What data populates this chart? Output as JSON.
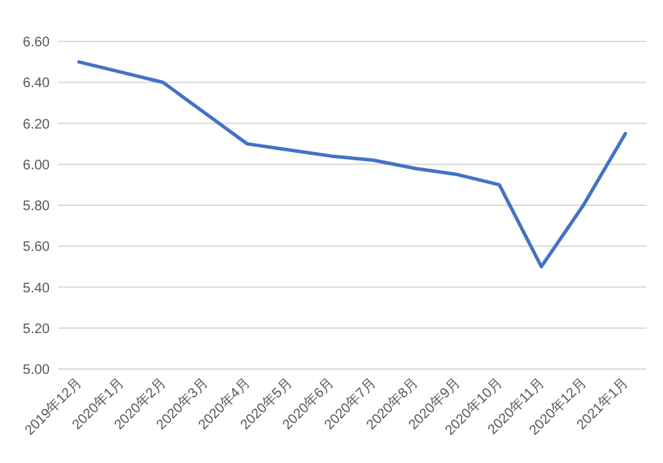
{
  "chart_data": {
    "type": "line",
    "categories": [
      "2019年12月",
      "2020年1月",
      "2020年2月",
      "2020年3月",
      "2020年4月",
      "2020年5月",
      "2020年6月",
      "2020年7月",
      "2020年8月",
      "2020年9月",
      "2020年10月",
      "2020年11月",
      "2020年12月",
      "2021年1月"
    ],
    "series": [
      {
        "color": "#4472c4",
        "values": [
          6.5,
          6.45,
          6.4,
          6.25,
          6.1,
          6.07,
          6.04,
          6.02,
          5.98,
          5.95,
          5.9,
          5.5,
          5.8,
          6.15
        ]
      }
    ],
    "ylim": [
      5.0,
      6.6
    ],
    "yticks": [
      {
        "value": 5.0,
        "label": "5.00"
      },
      {
        "value": 5.2,
        "label": "5.20"
      },
      {
        "value": 5.4,
        "label": "5.40"
      },
      {
        "value": 5.6,
        "label": "5.60"
      },
      {
        "value": 5.8,
        "label": "5.80"
      },
      {
        "value": 6.0,
        "label": "6.00"
      },
      {
        "value": 6.2,
        "label": "6.20"
      },
      {
        "value": 6.4,
        "label": "6.40"
      },
      {
        "value": 6.6,
        "label": "6.60"
      }
    ],
    "grid": "y",
    "marker": "none",
    "line_style": "solid"
  }
}
